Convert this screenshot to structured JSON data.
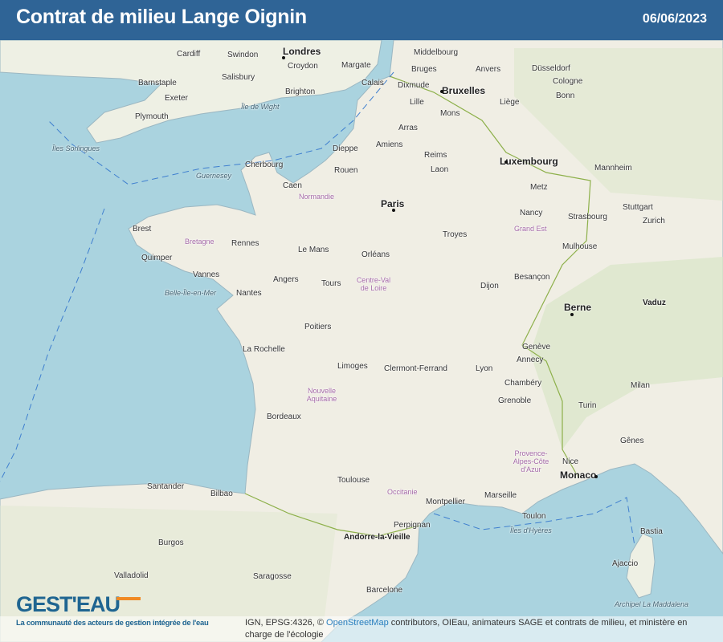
{
  "header": {
    "title": "Contrat de milieu Lange Oignin",
    "date": "06/06/2023"
  },
  "logo": {
    "text": "GEST'EAU",
    "tagline": "La communauté des acteurs de gestion intégrée de l'eau"
  },
  "attribution": {
    "prefix": "IGN, EPSG:4326, © ",
    "osm_link": "OpenStreetMap",
    "suffix": " contributors, OIEau, animateurs SAGE et contrats de milieu, et ministère en charge de l'écologie"
  },
  "colors": {
    "header": "#2f6496",
    "sea": "#aad3df",
    "land": "#f2efe9",
    "logo": "#1f6591",
    "logo_accent": "#f08a24"
  },
  "map": {
    "labels": [
      "Londres",
      "Cardiff",
      "Swindon",
      "Croydon",
      "Margate",
      "Salisbury",
      "Brighton",
      "Exeter",
      "Plymouth",
      "Barnstaple",
      "Calais",
      "Dixmude",
      "Bruges",
      "Bruxelles",
      "Anvers",
      "Middelbourg",
      "Lille",
      "Mons",
      "Liège",
      "Düsseldorf",
      "Bonn",
      "Cologne",
      "Luxembourg",
      "Amiens",
      "Arras",
      "Dieppe",
      "Rouen",
      "Caen",
      "Cherbourg",
      "Paris",
      "Reims",
      "Laon",
      "Metz",
      "Nancy",
      "Strasbourg",
      "Mannheim",
      "Stuttgart",
      "Rennes",
      "Brest",
      "Quimper",
      "Vannes",
      "Nantes",
      "Angers",
      "Le Mans",
      "Tours",
      "Orléans",
      "Troyes",
      "Dijon",
      "Mulhouse",
      "Besançon",
      "Poitiers",
      "La Rochelle",
      "Limoges",
      "Clermont-Ferrand",
      "Lyon",
      "Genève",
      "Annecy",
      "Chambéry",
      "Grenoble",
      "Bordeaux",
      "Toulouse",
      "Montpellier",
      "Marseille",
      "Toulon",
      "Nice",
      "Monaco",
      "Perpignan",
      "Andorre-la-Vieille",
      "Berne",
      "Zurich",
      "Vaduz",
      "Milan",
      "Turin",
      "Gênes",
      "Santander",
      "Bilbao",
      "Burgos",
      "Saragosse",
      "Barcelone",
      "Valladolid",
      "Ajaccio",
      "Bastia",
      "Normandie",
      "Bretagne",
      "Centre-Val de Loire",
      "Grand Est",
      "Nouvelle Aquitaine",
      "Occitanie",
      "Provence-Alpes-Côte d'Azur",
      "Île de Wight",
      "Îles Sorlingues",
      "Guernesey",
      "Belle-Île-en-Mer",
      "Îles d'Hyères",
      "Archipel La Maddalena"
    ]
  }
}
